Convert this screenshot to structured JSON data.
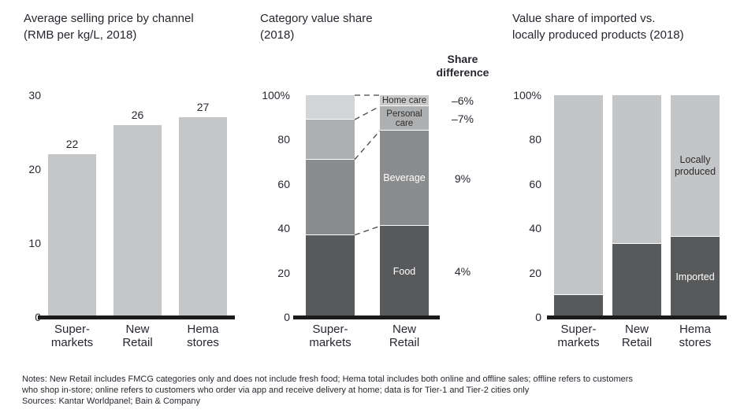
{
  "page": {
    "background": "#ffffff",
    "text_color": "#2a2630",
    "axis_color": "#1b1b1b"
  },
  "footnote": {
    "lines": [
      "Notes: New Retail includes FMCG categories only and does not include fresh food; Hema total includes both online and offline sales; offline refers to customers",
      "who shop in-store; online refers to customers who order via app and receive delivery at home; data is for Tier-1 and Tier-2 cities only"
    ],
    "sources": "Sources: Kantar Worldpanel; Bain & Company"
  },
  "chart_data": [
    {
      "type": "bar",
      "title_lines": [
        "Average selling price by channel",
        "(RMB per kg/L, 2018)"
      ],
      "categories": [
        [
          "Super-",
          "markets"
        ],
        [
          "New",
          "Retail"
        ],
        [
          "Hema",
          "stores"
        ]
      ],
      "values": [
        22,
        26,
        27
      ],
      "value_labels": [
        "22",
        "26",
        "27"
      ],
      "ylim": [
        0,
        30
      ],
      "yticks": [
        {
          "value": 30,
          "label": "30"
        },
        {
          "value": 20,
          "label": "20"
        },
        {
          "value": 10,
          "label": "10"
        },
        {
          "value": 0,
          "label": "0"
        }
      ],
      "bar_color": "#c5c6c8",
      "grid": false,
      "legend": "none"
    },
    {
      "type": "stacked-bar",
      "title_lines": [
        "Category value share",
        "(2018)"
      ],
      "categories": [
        [
          "Super-",
          "markets"
        ],
        [
          "New",
          "Retail"
        ]
      ],
      "ylim": [
        0,
        100
      ],
      "yticks": [
        {
          "value": 100,
          "label": "100%"
        },
        {
          "value": 80,
          "label": "80"
        },
        {
          "value": 60,
          "label": "60"
        },
        {
          "value": 40,
          "label": "40"
        },
        {
          "value": 20,
          "label": "20"
        },
        {
          "value": 0,
          "label": "0"
        }
      ],
      "share_difference_header": [
        "Share",
        "difference"
      ],
      "connector_lines": true,
      "series": [
        {
          "name": "Food",
          "values": [
            37,
            41
          ],
          "color": "#58595b",
          "label_lines": [
            "Food"
          ],
          "label_bar": 1,
          "label_color": "#ffffff",
          "share_difference": "4%"
        },
        {
          "name": "Beverage",
          "values": [
            34,
            43
          ],
          "color": "#8b8c8e",
          "label_lines": [
            "Beverage"
          ],
          "label_bar": 1,
          "label_color": "#ffffff",
          "share_difference": "9%"
        },
        {
          "name": "Personal care",
          "values": [
            18,
            11
          ],
          "color": "#aeafb1",
          "label_lines": [
            "Personal",
            "care"
          ],
          "label_bar": 1,
          "label_color": "#2c2c2c",
          "label_small": true,
          "share_difference": "–7%"
        },
        {
          "name": "Home care",
          "values": [
            11,
            5
          ],
          "colors": [
            "#d3d4d5",
            "#c9cacc"
          ],
          "label_lines": [
            "Home care"
          ],
          "label_bar": 1,
          "label_color": "#2c2c2c",
          "label_small": true,
          "share_difference": "–6%"
        }
      ],
      "grid": false,
      "legend": "inside-bars"
    },
    {
      "type": "stacked-bar",
      "title_lines": [
        "Value share of imported vs.",
        "locally produced products (2018)"
      ],
      "categories": [
        [
          "Super-",
          "markets"
        ],
        [
          "New",
          "Retail"
        ],
        [
          "Hema",
          "stores"
        ]
      ],
      "ylim": [
        0,
        100
      ],
      "yticks": [
        {
          "value": 100,
          "label": "100%"
        },
        {
          "value": 80,
          "label": "80"
        },
        {
          "value": 60,
          "label": "60"
        },
        {
          "value": 40,
          "label": "40"
        },
        {
          "value": 20,
          "label": "20"
        },
        {
          "value": 0,
          "label": "0"
        }
      ],
      "series": [
        {
          "name": "Imported",
          "values": [
            10,
            33,
            36
          ],
          "color": "#58595b",
          "label_lines": [
            "Imported"
          ],
          "label_bar": 2,
          "label_color": "#ffffff"
        },
        {
          "name": "Locally produced",
          "values": [
            90,
            67,
            64
          ],
          "color": "#c4c5c7",
          "label_lines": [
            "Locally",
            "produced"
          ],
          "label_bar": 2,
          "label_color": "#2c2c2c"
        }
      ],
      "grid": false,
      "legend": "inside-bars"
    }
  ]
}
